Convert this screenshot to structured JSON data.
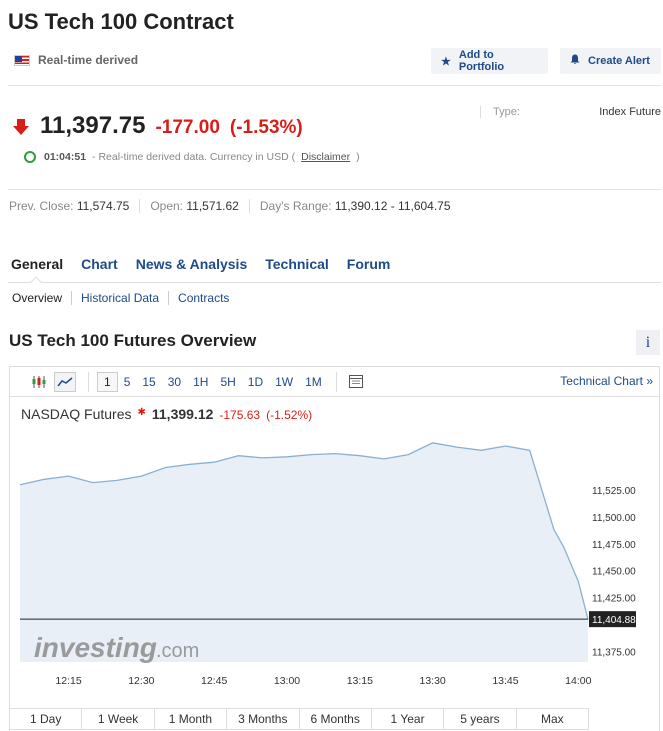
{
  "header": {
    "title": "US Tech 100 Contract",
    "realtime_label": "Real-time derived"
  },
  "buttons": {
    "portfolio": "Add to Portfolio",
    "alert": "Create Alert"
  },
  "quote": {
    "last": "11,397.75",
    "change": "-177.00",
    "change_pct": "(-1.53%)",
    "time": "01:04:51",
    "note": "- Real-time derived data. Currency in USD (",
    "disclaimer": "Disclaimer",
    "note_end": ")",
    "type_label": "Type:",
    "type_value": "Index Future"
  },
  "stats": {
    "prev_close_label": "Prev. Close:",
    "prev_close": "11,574.75",
    "open_label": "Open:",
    "open": "11,571.62",
    "range_label": "Day's Range:",
    "range": "11,390.12 - 11,604.75"
  },
  "tabs": [
    "General",
    "Chart",
    "News & Analysis",
    "Technical",
    "Forum"
  ],
  "subtabs": [
    "Overview",
    "Historical Data",
    "Contracts"
  ],
  "section": {
    "title": "US Tech 100 Futures Overview",
    "info": "i"
  },
  "toolbar": {
    "intervals": [
      "1",
      "5",
      "15",
      "30",
      "1H",
      "5H",
      "1D",
      "1W",
      "1M"
    ],
    "technical_chart": "Technical Chart »"
  },
  "chart_quote": {
    "name": "NASDAQ Futures",
    "value": "11,399.12",
    "change": "-175.63",
    "change_pct": "(-1.52%)"
  },
  "watermark": {
    "brand": "investing",
    "suffix": ".com"
  },
  "colors": {
    "accent": "#1e4a88",
    "negative": "#d91e18",
    "area_fill": "#e8eff6",
    "line": "#8ab0d0"
  },
  "chart_data": {
    "type": "area",
    "x": [
      "12:05",
      "12:10",
      "12:15",
      "12:20",
      "12:25",
      "12:30",
      "12:35",
      "12:40",
      "12:45",
      "12:50",
      "12:55",
      "13:00",
      "13:05",
      "13:10",
      "13:15",
      "13:20",
      "13:25",
      "13:30",
      "13:35",
      "13:40",
      "13:45",
      "13:50",
      "13:55",
      "13:57",
      "14:00",
      "14:02"
    ],
    "values": [
      11530,
      11535,
      11538,
      11532,
      11534,
      11538,
      11546,
      11549,
      11551,
      11557,
      11555,
      11556,
      11558,
      11559,
      11557,
      11554,
      11558,
      11569,
      11565,
      11562,
      11566,
      11562,
      11488,
      11472,
      11440,
      11404.88
    ],
    "x_ticks": [
      "12:15",
      "12:30",
      "12:45",
      "13:00",
      "13:15",
      "13:30",
      "13:45",
      "14:00"
    ],
    "y_ticks": [
      "11,525.00",
      "11,500.00",
      "11,475.00",
      "11,450.00",
      "11,425.00",
      "11,375.00"
    ],
    "y_tick_values": [
      11525,
      11500,
      11475,
      11450,
      11425,
      11375
    ],
    "last_label": "11,404.88",
    "last_value": 11404.88,
    "ylim": [
      11365,
      11580
    ]
  },
  "ranges": [
    "1 Day",
    "1 Week",
    "1 Month",
    "3 Months",
    "6 Months",
    "1 Year",
    "5 years",
    "Max"
  ]
}
